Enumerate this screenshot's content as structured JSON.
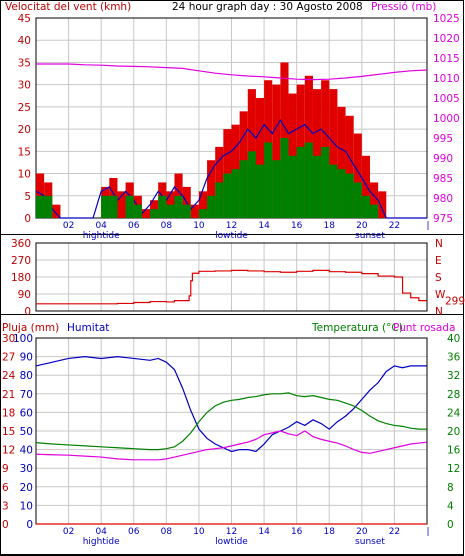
{
  "header": {
    "left_title": "Velocitat del vent (kmh)",
    "center_title": "24 hour graph day : 30 Agosto 2008",
    "right_title": "Pressió (mb)"
  },
  "colors": {
    "red": "#e00000",
    "blue": "#0000c0",
    "green": "#008000",
    "magenta": "#e000e0",
    "axis_red": "#c00000",
    "axis_green": "#008000",
    "axis_blue": "#0000c0",
    "grid": "#c8c8c8"
  },
  "x_axis": {
    "tick_labels": [
      "02",
      "04",
      "06",
      "08",
      "10",
      "12",
      "14",
      "16",
      "18",
      "20",
      "22"
    ],
    "markers": [
      {
        "label": "hightide",
        "hour": 4
      },
      {
        "label": "lowtide",
        "hour": 12
      },
      {
        "label": "sunset",
        "hour": 20.5
      }
    ]
  },
  "chart_data": [
    {
      "type": "line",
      "name": "wind",
      "title": "24 hour graph day : 30 Agosto 2008",
      "ylabel": "Velocitat del vent (kmh)",
      "ylabel_right": "Pressió (mb)",
      "xlim": [
        0,
        24
      ],
      "ylim": [
        0,
        45
      ],
      "ylim_right": [
        975,
        1025
      ],
      "y_ticks": [
        0,
        5,
        10,
        15,
        20,
        25,
        30,
        35,
        40,
        45
      ],
      "y_ticks_right": [
        975,
        980,
        985,
        990,
        995,
        1000,
        1005,
        1010,
        1015,
        1020,
        1025
      ],
      "x_ticks": [
        "02",
        "04",
        "06",
        "08",
        "10",
        "12",
        "14",
        "16",
        "18",
        "20",
        "22"
      ],
      "grid": true,
      "series": [
        {
          "key": "gust",
          "color": "#e00000",
          "axis": "left",
          "style": "bars",
          "x": [
            0,
            0.5,
            1,
            1.5,
            2,
            2.5,
            3,
            3.5,
            4,
            4.5,
            5,
            5.5,
            6,
            6.5,
            7,
            7.5,
            8,
            8.5,
            9,
            9.5,
            10,
            10.5,
            11,
            11.5,
            12,
            12.5,
            13,
            13.5,
            14,
            14.5,
            15,
            15.5,
            16,
            16.5,
            17,
            17.5,
            18,
            18.5,
            19,
            19.5,
            20,
            20.5,
            21,
            21.5,
            22,
            22.5,
            23,
            23.5,
            24
          ],
          "values": [
            10,
            8,
            3,
            0,
            0,
            0,
            0,
            0,
            7,
            9,
            6,
            8,
            5,
            2,
            4,
            8,
            6,
            10,
            7,
            3,
            6,
            13,
            16,
            20,
            21,
            24,
            29,
            27,
            31,
            30,
            35,
            28,
            30,
            32,
            29,
            31,
            29,
            25,
            23,
            19,
            14,
            8,
            6,
            0,
            0,
            0,
            0,
            0,
            0
          ]
        },
        {
          "key": "average",
          "color": "#0000c0",
          "axis": "left",
          "style": "line",
          "x": [
            0,
            0.5,
            1,
            1.5,
            2,
            2.5,
            3,
            3.5,
            4,
            4.5,
            5,
            5.5,
            6,
            6.5,
            7,
            7.5,
            8,
            8.5,
            9,
            9.5,
            10,
            10.5,
            11,
            11.5,
            12,
            12.5,
            13,
            13.5,
            14,
            14.5,
            15,
            15.5,
            16,
            16.5,
            17,
            17.5,
            18,
            18.5,
            19,
            19.5,
            20,
            20.5,
            21,
            21.5,
            22,
            22.5,
            23,
            23.5,
            24
          ],
          "values": [
            6,
            5,
            2,
            0,
            0,
            0,
            0,
            0,
            6,
            7,
            4,
            6,
            4,
            1,
            3,
            6,
            4,
            7,
            5,
            2,
            4,
            9,
            12,
            14,
            15,
            17,
            20,
            18,
            21,
            19,
            22,
            19,
            20,
            21,
            19,
            20,
            18,
            16,
            15,
            12,
            9,
            6,
            4,
            0,
            0,
            0,
            0,
            0,
            0
          ]
        },
        {
          "key": "minimum",
          "color": "#008000",
          "axis": "left",
          "style": "bars",
          "x": [
            0,
            0.5,
            1,
            1.5,
            2,
            2.5,
            3,
            3.5,
            4,
            4.5,
            5,
            5.5,
            6,
            6.5,
            7,
            7.5,
            8,
            8.5,
            9,
            9.5,
            10,
            10.5,
            11,
            11.5,
            12,
            12.5,
            13,
            13.5,
            14,
            14.5,
            15,
            15.5,
            16,
            16.5,
            17,
            17.5,
            18,
            18.5,
            19,
            19.5,
            20,
            20.5,
            21,
            21.5,
            22,
            22.5,
            23,
            23.5,
            24
          ],
          "values": [
            5,
            5,
            0,
            0,
            0,
            0,
            0,
            0,
            5,
            5,
            0,
            5,
            3,
            0,
            2,
            5,
            3,
            5,
            3,
            0,
            2,
            5,
            8,
            10,
            11,
            13,
            15,
            12,
            17,
            13,
            18,
            14,
            16,
            17,
            14,
            16,
            12,
            11,
            10,
            8,
            5,
            3,
            0,
            0,
            0,
            0,
            0,
            0,
            0
          ]
        },
        {
          "key": "pressure",
          "color": "#e000e0",
          "axis": "right",
          "style": "line",
          "x": [
            0,
            1,
            2,
            3,
            4,
            5,
            6,
            7,
            8,
            9,
            10,
            11,
            12,
            13,
            14,
            15,
            16,
            17,
            18,
            19,
            20,
            21,
            22,
            23,
            24
          ],
          "values": [
            1013.5,
            1013.5,
            1013.5,
            1013.3,
            1013.2,
            1013.0,
            1012.9,
            1012.8,
            1012.6,
            1012.4,
            1011.8,
            1011.2,
            1010.8,
            1010.5,
            1010.3,
            1010.0,
            1009.7,
            1009.6,
            1009.7,
            1010.0,
            1010.4,
            1010.9,
            1011.4,
            1011.8,
            1012.0
          ]
        }
      ]
    },
    {
      "type": "line",
      "name": "wind-direction",
      "xlim": [
        0,
        24
      ],
      "ylim": [
        0,
        360
      ],
      "y_ticks": [
        0,
        90,
        180,
        270,
        360
      ],
      "y_tick_labels": [
        "0",
        "90",
        "180",
        "270",
        "360"
      ],
      "right_labels": [
        "N",
        "W",
        "S",
        "E",
        "N"
      ],
      "current_value_label": "299",
      "grid": true,
      "series": [
        {
          "key": "direction",
          "color": "#e00000",
          "axis": "left",
          "style": "step",
          "x": [
            0,
            0.5,
            1,
            2,
            3,
            4,
            5,
            6,
            7,
            8,
            8.5,
            9,
            9.4,
            9.5,
            9.6,
            10,
            11,
            12,
            13,
            14,
            15,
            16,
            17,
            18,
            19,
            20,
            21,
            22,
            22.5,
            23,
            23.5,
            24
          ],
          "values": [
            38,
            38,
            38,
            38,
            38,
            38,
            40,
            45,
            50,
            48,
            55,
            55,
            80,
            160,
            200,
            210,
            212,
            215,
            212,
            208,
            205,
            210,
            215,
            208,
            205,
            198,
            185,
            180,
            95,
            70,
            55,
            55
          ]
        }
      ]
    },
    {
      "type": "line",
      "name": "rain-humidity-temperature",
      "ylabel": "Pluja (mm)",
      "ylabel_humidity": "Humitat",
      "ylabel_right": "Temperatura (°C)",
      "ylabel_right_2": "Punt rosada",
      "xlim": [
        0,
        24
      ],
      "ylim_rain": [
        0,
        30
      ],
      "ylim_humidity": [
        0,
        100
      ],
      "ylim_right": [
        0,
        40
      ],
      "rain_ticks": [
        0,
        3,
        6,
        9,
        12,
        15,
        18,
        21,
        24,
        27,
        30
      ],
      "humidity_ticks": [
        0,
        10,
        20,
        30,
        40,
        50,
        60,
        70,
        80,
        90,
        100
      ],
      "temp_ticks": [
        0,
        4,
        8,
        12,
        16,
        20,
        24,
        28,
        32,
        36,
        40
      ],
      "grid": true,
      "series": [
        {
          "key": "rain",
          "color": "#e00000",
          "axis": "rain",
          "style": "line",
          "x": [
            0,
            24
          ],
          "values": [
            0,
            0
          ]
        },
        {
          "key": "humidity",
          "color": "#0000c0",
          "axis": "humidity",
          "style": "line",
          "x": [
            0,
            1,
            2,
            3,
            4,
            5,
            6,
            7,
            7.5,
            8,
            8.5,
            9,
            9.5,
            10,
            10.5,
            11,
            11.5,
            12,
            12.5,
            13,
            13.5,
            14,
            14.5,
            15,
            15.5,
            16,
            16.5,
            17,
            17.5,
            18,
            18.5,
            19,
            19.5,
            20,
            20.5,
            21,
            21.5,
            22,
            22.5,
            23,
            23.5,
            24
          ],
          "values": [
            85,
            87,
            89,
            90,
            89,
            90,
            89,
            88,
            89,
            87,
            83,
            73,
            61,
            51,
            46,
            43,
            41,
            39,
            40,
            40,
            39,
            43,
            48,
            50,
            52,
            55,
            53,
            56,
            54,
            51,
            55,
            58,
            62,
            67,
            72,
            76,
            82,
            85,
            84,
            85,
            85,
            85
          ]
        },
        {
          "key": "temperature",
          "color": "#008000",
          "axis": "right",
          "style": "line",
          "x": [
            0,
            1,
            2,
            3,
            4,
            5,
            6,
            7,
            7.5,
            8,
            8.5,
            9,
            9.5,
            10,
            10.5,
            11,
            11.5,
            12,
            12.5,
            13,
            13.5,
            14,
            14.5,
            15,
            15.5,
            16,
            16.5,
            17,
            17.5,
            18,
            18.5,
            19,
            19.5,
            20,
            20.5,
            21,
            21.5,
            22,
            22.5,
            23,
            23.5,
            24
          ],
          "values": [
            17.5,
            17.2,
            17.0,
            16.8,
            16.6,
            16.4,
            16.2,
            16.0,
            16.0,
            16.2,
            16.6,
            17.8,
            19.6,
            22.0,
            24.0,
            25.4,
            26.2,
            26.6,
            26.8,
            27.2,
            27.4,
            27.8,
            28.0,
            28.0,
            28.2,
            27.6,
            27.4,
            27.6,
            27.2,
            26.8,
            26.6,
            26.0,
            25.4,
            24.4,
            23.2,
            22.2,
            21.6,
            21.2,
            21.0,
            20.6,
            20.4,
            20.4
          ]
        },
        {
          "key": "dewpoint",
          "color": "#e000e0",
          "axis": "right",
          "style": "line",
          "x": [
            0,
            1,
            2,
            3,
            4,
            5,
            6,
            7,
            7.5,
            8,
            8.5,
            9,
            9.5,
            10,
            10.5,
            11,
            11.5,
            12,
            12.5,
            13,
            13.5,
            14,
            14.5,
            15,
            15.5,
            16,
            16.5,
            17,
            17.5,
            18,
            18.5,
            19,
            19.5,
            20,
            20.5,
            21,
            21.5,
            22,
            22.5,
            23,
            23.5,
            24
          ],
          "values": [
            15.0,
            14.9,
            14.8,
            14.6,
            14.4,
            14.0,
            13.8,
            13.8,
            13.8,
            14.0,
            14.4,
            14.8,
            15.2,
            15.6,
            16.0,
            16.2,
            16.4,
            16.8,
            17.2,
            17.6,
            18.2,
            19.2,
            19.6,
            20.0,
            19.4,
            19.0,
            20.0,
            18.8,
            18.2,
            17.8,
            17.4,
            16.8,
            16.0,
            15.4,
            15.2,
            15.6,
            16.0,
            16.4,
            16.8,
            17.2,
            17.4,
            17.6
          ]
        }
      ]
    }
  ],
  "bottom_panel_labels": {
    "rain_label": "Pluja (mm)",
    "humidity_label": "Humitat",
    "temperature_label": "Temperatura (°C)",
    "dewpoint_label": "Punt rosada"
  }
}
